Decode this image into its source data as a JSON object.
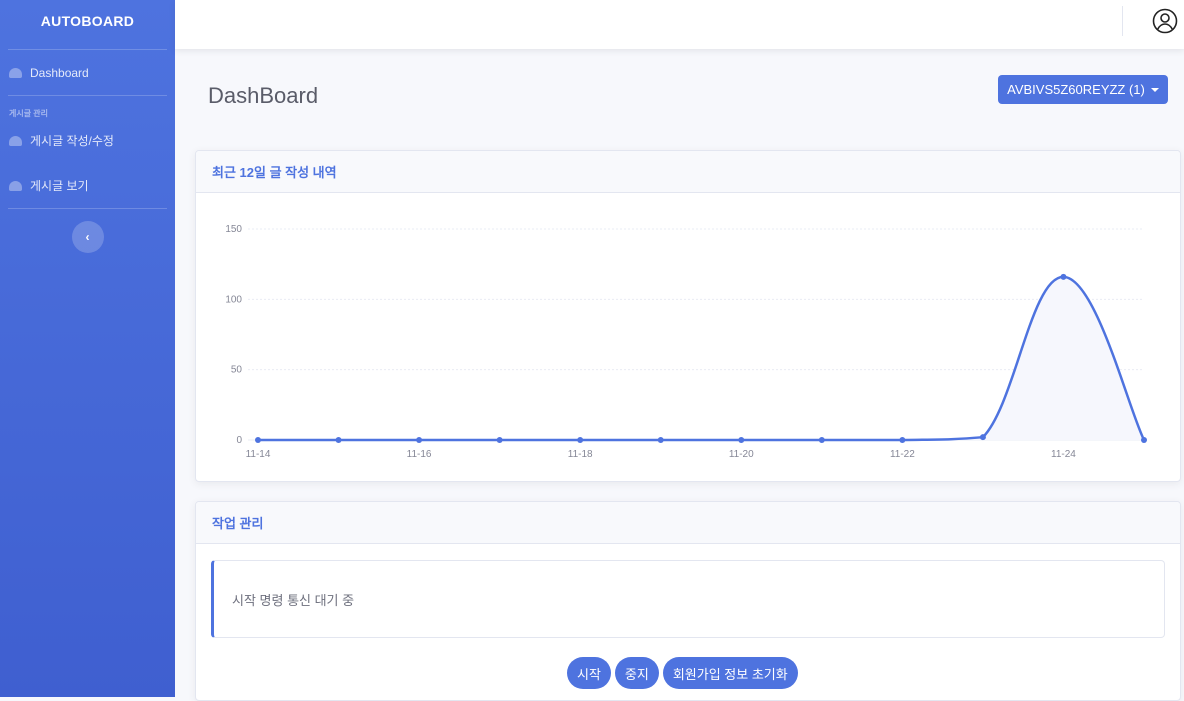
{
  "sidebar": {
    "brand": "AUTOBOARD",
    "items": [
      {
        "label": "Dashboard",
        "icon": "tachometer-icon"
      }
    ],
    "section_heading": "게시글 관리",
    "section_items": [
      {
        "label": "게시글 작성/수정",
        "icon": "tachometer-icon"
      },
      {
        "label": "게시글 보기",
        "icon": "tachometer-icon"
      }
    ],
    "toggle": "‹"
  },
  "header": {
    "page_title": "DashBoard",
    "account_dropdown": "AVBIVS5Z60REYZZ (1)",
    "user_icon": "user-circle-icon"
  },
  "chart_card": {
    "title": "최근 12일 글 작성 내역"
  },
  "chart_data": {
    "type": "line",
    "x": [
      "11-14",
      "11-15",
      "11-16",
      "11-17",
      "11-18",
      "11-19",
      "11-20",
      "11-21",
      "11-22",
      "11-23",
      "11-24",
      "11-25"
    ],
    "values": [
      0,
      0,
      0,
      0,
      0,
      0,
      0,
      0,
      0,
      2,
      116,
      0
    ],
    "xticks": [
      "11-14",
      "11-16",
      "11-18",
      "11-20",
      "11-22",
      "11-24"
    ],
    "yticks": [
      0,
      50,
      100,
      150
    ],
    "ylim": [
      0,
      150
    ],
    "grid": true,
    "color": "#4e73df",
    "fill": "#f6f7fd"
  },
  "task_card": {
    "title": "작업 관리",
    "status": "시작 명령 통신 대기 중",
    "buttons": [
      "시작",
      "중지",
      "회원가입 정보 초기화"
    ]
  },
  "colors": {
    "primary": "#4e73df"
  }
}
